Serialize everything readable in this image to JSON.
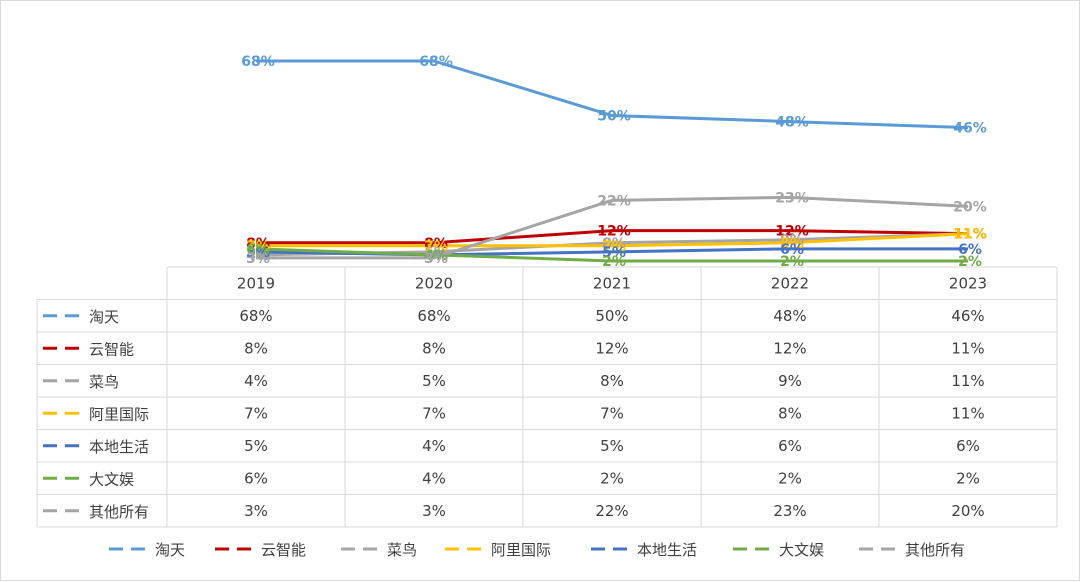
{
  "chart_data": {
    "type": "line",
    "title": "",
    "xlabel": "",
    "ylabel": "",
    "ylim": [
      0,
      70
    ],
    "grid": false,
    "legend_position": "bottom",
    "data_table": true,
    "categories": [
      "2019",
      "2020",
      "2021",
      "2022",
      "2023"
    ],
    "series": [
      {
        "name": "淘天",
        "color": "#5b9bd5",
        "values": [
          68,
          68,
          50,
          48,
          46
        ],
        "labels": [
          "68%",
          "68%",
          "50%",
          "48%",
          "46%"
        ]
      },
      {
        "name": "云智能",
        "color": "#c00000",
        "values": [
          8,
          8,
          12,
          12,
          11
        ],
        "labels": [
          "8%",
          "8%",
          "12%",
          "12%",
          "11%"
        ]
      },
      {
        "name": "菜鸟",
        "color": "#a5a5a5",
        "values": [
          4,
          5,
          8,
          9,
          11
        ],
        "labels": [
          "4%",
          "5%",
          "8%",
          "9%",
          "11%"
        ]
      },
      {
        "name": "阿里国际",
        "color": "#ffc000",
        "values": [
          7,
          7,
          7,
          8,
          11
        ],
        "labels": [
          "7%",
          "7%",
          "7%",
          "8%",
          "11%"
        ]
      },
      {
        "name": "本地生活",
        "color": "#4472c4",
        "values": [
          5,
          4,
          5,
          6,
          6
        ],
        "labels": [
          "5%",
          "4%",
          "5%",
          "6%",
          "6%"
        ]
      },
      {
        "name": "大文娱",
        "color": "#70ad47",
        "values": [
          6,
          4,
          2,
          2,
          2
        ],
        "labels": [
          "6%",
          "4%",
          "2%",
          "2%",
          "2%"
        ]
      },
      {
        "name": "其他所有",
        "color": "#a5a5a5",
        "values": [
          3,
          3,
          22,
          23,
          20
        ],
        "labels": [
          "3%",
          "3%",
          "22%",
          "23%",
          "20%"
        ]
      }
    ]
  }
}
